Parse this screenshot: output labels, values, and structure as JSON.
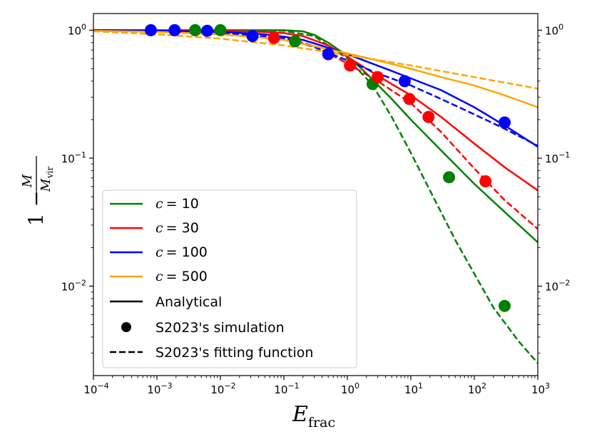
{
  "chart_data": {
    "type": "line",
    "title": "",
    "xlabel": {
      "base": "E",
      "sub": "frac"
    },
    "ylabel": {
      "prefix": "1 −",
      "num": "M",
      "den_base": "M",
      "den_sub": "vir"
    },
    "xscale": "log",
    "yscale": "log",
    "xlim": [
      0.0001,
      1000
    ],
    "ylim": [
      0.002,
      1.35
    ],
    "x_ticks": [
      {
        "value": 0.0001,
        "exp": "−4"
      },
      {
        "value": 0.001,
        "exp": "−3"
      },
      {
        "value": 0.01,
        "exp": "−2"
      },
      {
        "value": 0.1,
        "exp": "−1"
      },
      {
        "value": 1,
        "exp": "0"
      },
      {
        "value": 10,
        "exp": "1"
      },
      {
        "value": 100,
        "exp": "2"
      },
      {
        "value": 1000,
        "exp": "3"
      }
    ],
    "y_ticks": [
      {
        "value": 0.01,
        "exp": "−2"
      },
      {
        "value": 0.1,
        "exp": "−1"
      },
      {
        "value": 1,
        "exp": "0"
      }
    ],
    "tick_base": "10",
    "grid": false,
    "legend_position": "lower-left",
    "legend": {
      "series_entries": [
        {
          "prefix": "c",
          "value": "= 10",
          "color": "#008000"
        },
        {
          "prefix": "c",
          "value": "= 30",
          "color": "#ff0000"
        },
        {
          "prefix": "c",
          "value": "= 100",
          "color": "#0000ff"
        },
        {
          "prefix": "c",
          "value": "= 500",
          "color": "#ffa500"
        }
      ],
      "style_entries": [
        {
          "label": "Analytical",
          "style": "solid"
        },
        {
          "label": "S2023's simulation",
          "style": "marker"
        },
        {
          "label": "S2023's fitting function",
          "style": "dashed"
        }
      ]
    },
    "series": [
      {
        "name": "c = 10",
        "color": "#008000",
        "analytical": {
          "x": [
            0.0001,
            0.001,
            0.01,
            0.05,
            0.1,
            0.2,
            0.3,
            0.5,
            1,
            2,
            5,
            10,
            30,
            100,
            300,
            1000
          ],
          "y": [
            1.0,
            1.0,
            1.0,
            1.0,
            1.0,
            0.98,
            0.92,
            0.8,
            0.63,
            0.46,
            0.29,
            0.2,
            0.115,
            0.063,
            0.038,
            0.022
          ]
        },
        "fit": {
          "x": [
            0.0001,
            0.001,
            0.01,
            0.1,
            0.3,
            1,
            2,
            3,
            5,
            10,
            20,
            50,
            100,
            200,
            500,
            1000
          ],
          "y": [
            1.0,
            1.0,
            1.0,
            0.99,
            0.9,
            0.6,
            0.42,
            0.32,
            0.21,
            0.11,
            0.056,
            0.023,
            0.0125,
            0.0068,
            0.0037,
            0.0025
          ]
        },
        "simulation": {
          "x": [
            0.004,
            0.01,
            0.15,
            2.5,
            40,
            300
          ],
          "y": [
            1.0,
            1.0,
            0.82,
            0.38,
            0.071,
            0.007
          ]
        }
      },
      {
        "name": "c = 30",
        "color": "#ff0000",
        "analytical": {
          "x": [
            0.0001,
            0.001,
            0.01,
            0.05,
            0.1,
            0.2,
            0.5,
            1,
            2,
            5,
            10,
            30,
            100,
            300,
            1000
          ],
          "y": [
            1.0,
            1.0,
            0.99,
            0.97,
            0.95,
            0.9,
            0.76,
            0.62,
            0.5,
            0.38,
            0.31,
            0.21,
            0.13,
            0.085,
            0.056
          ]
        },
        "fit": {
          "x": [
            0.0001,
            0.001,
            0.01,
            0.1,
            0.3,
            1,
            3,
            10,
            30,
            100,
            300,
            1000
          ],
          "y": [
            1.0,
            1.0,
            0.98,
            0.88,
            0.75,
            0.55,
            0.4,
            0.27,
            0.16,
            0.083,
            0.047,
            0.028
          ]
        },
        "simulation": {
          "x": [
            0.07,
            1.1,
            3.0,
            9.5,
            19,
            150
          ],
          "y": [
            0.87,
            0.53,
            0.43,
            0.29,
            0.21,
            0.066
          ]
        }
      },
      {
        "name": "c = 100",
        "color": "#0000ff",
        "analytical": {
          "x": [
            0.0001,
            0.001,
            0.01,
            0.05,
            0.1,
            0.2,
            0.5,
            1,
            2,
            5,
            10,
            30,
            100,
            300,
            1000
          ],
          "y": [
            1.0,
            0.99,
            0.97,
            0.93,
            0.89,
            0.84,
            0.73,
            0.65,
            0.57,
            0.48,
            0.42,
            0.34,
            0.25,
            0.18,
            0.123
          ]
        },
        "fit": {
          "x": [
            0.0001,
            0.001,
            0.01,
            0.1,
            0.3,
            1,
            3,
            10,
            30,
            100,
            300,
            1000
          ],
          "y": [
            1.0,
            0.99,
            0.96,
            0.86,
            0.74,
            0.58,
            0.46,
            0.37,
            0.29,
            0.22,
            0.17,
            0.125
          ]
        },
        "simulation": {
          "x": [
            0.0008,
            0.0019,
            0.0062,
            0.032,
            0.5,
            8,
            300
          ],
          "y": [
            1.0,
            1.0,
            0.99,
            0.9,
            0.65,
            0.4,
            0.19
          ]
        }
      },
      {
        "name": "c = 500",
        "color": "#ffa500",
        "analytical": {
          "x": [
            0.0001,
            0.001,
            0.01,
            0.05,
            0.1,
            0.3,
            1,
            3,
            10,
            30,
            100,
            300,
            1000
          ],
          "y": [
            0.99,
            0.97,
            0.93,
            0.87,
            0.84,
            0.75,
            0.66,
            0.58,
            0.5,
            0.43,
            0.37,
            0.31,
            0.25
          ]
        },
        "fit": {
          "x": [
            0.0001,
            0.001,
            0.01,
            0.1,
            1,
            10,
            100,
            1000
          ],
          "y": [
            0.98,
            0.93,
            0.86,
            0.76,
            0.64,
            0.53,
            0.43,
            0.35
          ]
        },
        "simulation": {
          "x": [],
          "y": []
        }
      }
    ]
  }
}
